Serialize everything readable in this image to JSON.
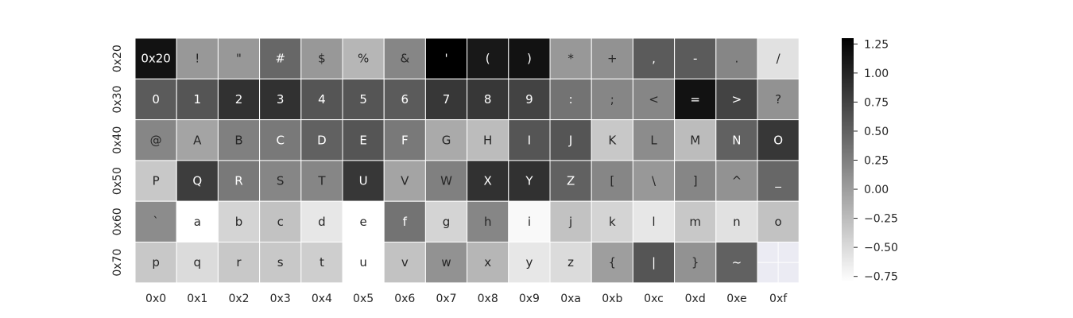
{
  "chart_data": {
    "type": "heatmap",
    "title": "",
    "xlabel": "",
    "ylabel": "",
    "x_tick_labels": [
      "0x0",
      "0x1",
      "0x2",
      "0x3",
      "0x4",
      "0x5",
      "0x6",
      "0x7",
      "0x8",
      "0x9",
      "0xa",
      "0xb",
      "0xc",
      "0xd",
      "0xe",
      "0xf"
    ],
    "y_tick_labels": [
      "0x20",
      "0x30",
      "0x40",
      "0x50",
      "0x60",
      "0x70"
    ],
    "annotations": [
      [
        "0x20",
        "!",
        "\"",
        "#",
        "$",
        "%",
        "&",
        "'",
        "(",
        ")",
        "*",
        "+",
        ",",
        "-",
        ".",
        "/"
      ],
      [
        "0",
        "1",
        "2",
        "3",
        "4",
        "5",
        "6",
        "7",
        "8",
        "9",
        ":",
        ";",
        "<",
        "=",
        ">",
        "?"
      ],
      [
        "@",
        "A",
        "B",
        "C",
        "D",
        "E",
        "F",
        "G",
        "H",
        "I",
        "J",
        "K",
        "L",
        "M",
        "N",
        "O"
      ],
      [
        "P",
        "Q",
        "R",
        "S",
        "T",
        "U",
        "V",
        "W",
        "X",
        "Y",
        "Z",
        "[",
        "\\",
        "]",
        "^",
        "_"
      ],
      [
        "`",
        "a",
        "b",
        "c",
        "d",
        "e",
        "f",
        "g",
        "h",
        "i",
        "j",
        "k",
        "l",
        "m",
        "n",
        "o"
      ],
      [
        "p",
        "q",
        "r",
        "s",
        "t",
        "u",
        "v",
        "w",
        "x",
        "y",
        "z",
        "{",
        "|",
        "}",
        "~",
        ""
      ]
    ],
    "values": [
      [
        1.15,
        0.05,
        0.05,
        0.45,
        0.05,
        -0.2,
        0.2,
        1.3,
        1.1,
        1.15,
        0.05,
        0.1,
        0.55,
        0.55,
        0.2,
        -0.55
      ],
      [
        0.55,
        0.6,
        0.9,
        0.9,
        0.6,
        0.6,
        0.55,
        0.85,
        0.85,
        0.75,
        0.35,
        0.2,
        0.2,
        1.15,
        0.75,
        0.1
      ],
      [
        0.2,
        -0.05,
        0.25,
        0.3,
        0.5,
        0.6,
        0.3,
        -0.1,
        -0.25,
        0.6,
        0.6,
        -0.35,
        0.15,
        -0.25,
        0.5,
        0.85
      ],
      [
        -0.35,
        0.8,
        0.3,
        0.2,
        0.2,
        0.85,
        -0.05,
        0.25,
        0.9,
        0.9,
        0.5,
        0.2,
        0.05,
        0.2,
        0.1,
        0.45
      ],
      [
        0.15,
        -0.8,
        -0.45,
        -0.3,
        -0.6,
        -0.8,
        0.35,
        -0.45,
        0.2,
        -0.75,
        -0.3,
        -0.45,
        -0.6,
        -0.35,
        -0.55,
        -0.3
      ],
      [
        -0.35,
        -0.5,
        -0.35,
        -0.35,
        -0.4,
        -0.8,
        -0.3,
        0.1,
        -0.2,
        -0.6,
        -0.5,
        0.0,
        0.6,
        0.1,
        0.5,
        null
      ]
    ],
    "missing_color": "#ebebf3",
    "colormap": "Greys",
    "vmin": -0.8,
    "vmax": 1.3,
    "colorbar_ticks": [
      1.25,
      1.0,
      0.75,
      0.5,
      0.25,
      0.0,
      -0.25,
      -0.5,
      -0.75
    ],
    "colorbar_tick_labels": [
      "1.25",
      "1.00",
      "0.75",
      "0.50",
      "0.25",
      "0.00",
      "−0.25",
      "−0.50",
      "−0.75"
    ],
    "grid": false,
    "colors": {
      "low": "#ffffff",
      "high": "#000000",
      "gridline": "#ffffff",
      "text_dark": "#262626",
      "text_light": "#ffffff"
    }
  }
}
